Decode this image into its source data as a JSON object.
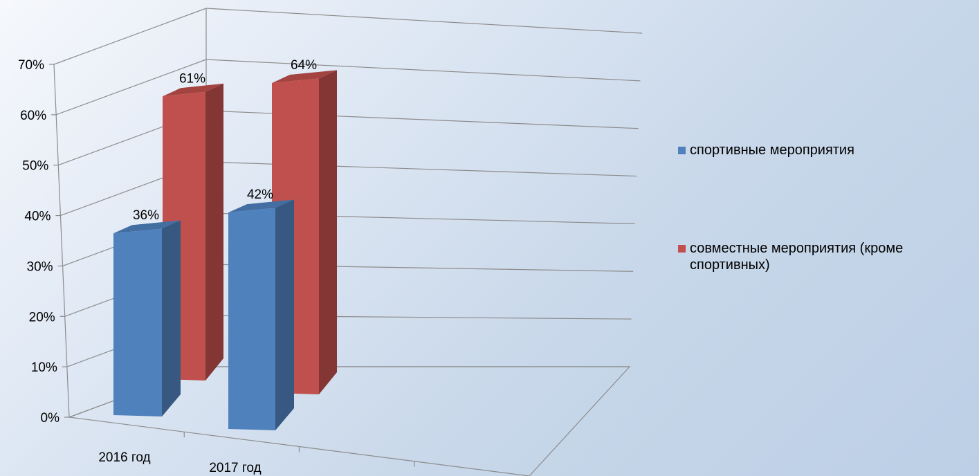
{
  "chart_data": {
    "type": "bar",
    "title": "",
    "categories": [
      "2016 год",
      "2017 год"
    ],
    "series": [
      {
        "name": "спортивные мероприятия",
        "values": [
          36,
          42
        ],
        "labels": [
          "36%",
          "42%"
        ],
        "color": "#4f81bd"
      },
      {
        "name": "совместные мероприятия (кроме спортивных)",
        "values": [
          61,
          64
        ],
        "labels": [
          "61%",
          "64%"
        ],
        "color": "#c0504d"
      }
    ],
    "ylim": [
      0,
      70
    ],
    "yticks": [
      "0%",
      "10%",
      "20%",
      "30%",
      "40%",
      "50%",
      "60%",
      "70%"
    ],
    "grid": true,
    "legend_position": "right",
    "style": "3d-clustered-column"
  }
}
